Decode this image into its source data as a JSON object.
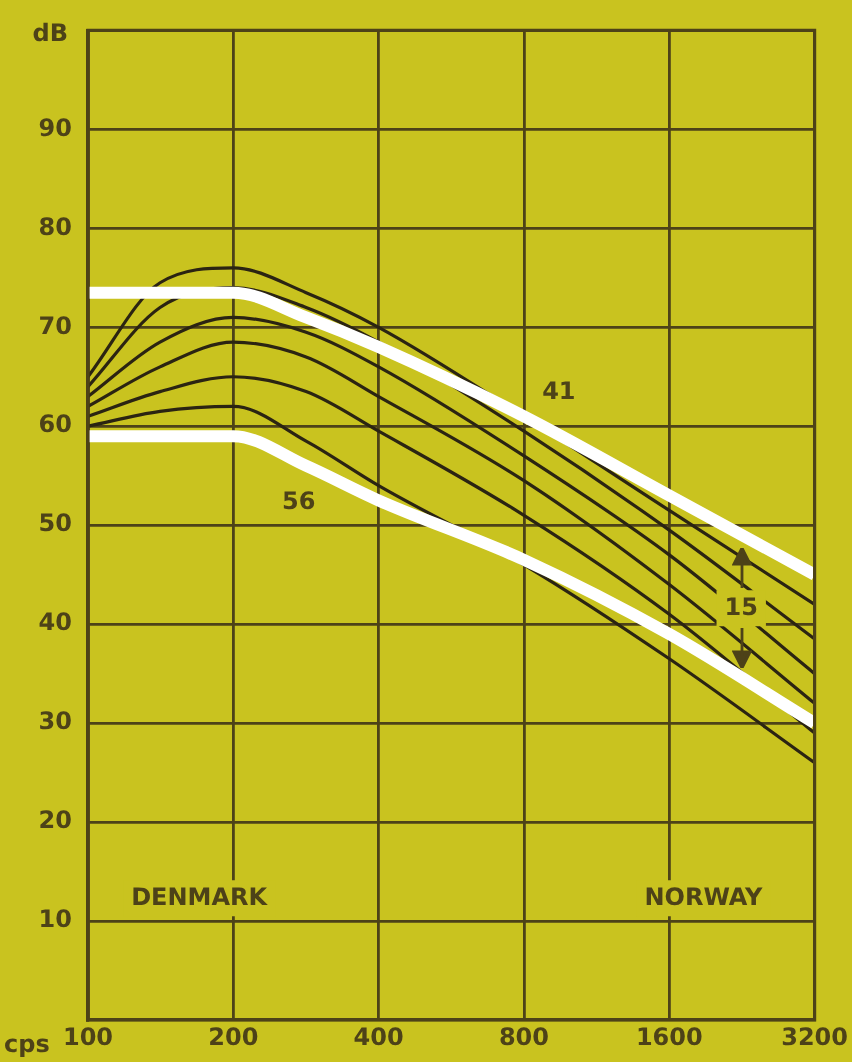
{
  "chart_data": {
    "type": "line",
    "xlabel": "cps",
    "ylabel": "dB",
    "x": [
      100,
      141,
      200,
      283,
      400,
      800,
      1600,
      3200
    ],
    "series": [
      {
        "color": "#ffffff",
        "values": [
          73.5,
          73.5,
          73.5,
          71,
          68,
          61,
          53,
          45
        ]
      },
      {
        "color": "#ffffff",
        "values": [
          59,
          59,
          59,
          56,
          52.5,
          46.5,
          39,
          30
        ]
      },
      {
        "color": "#2b2412",
        "values": [
          65,
          74.5,
          76,
          73.5,
          70,
          61,
          51.5,
          42
        ]
      },
      {
        "color": "#2b2412",
        "values": [
          64,
          72,
          74,
          72,
          68.5,
          59.5,
          49.5,
          38.5
        ]
      },
      {
        "color": "#2b2412",
        "values": [
          63,
          68.5,
          71,
          69.5,
          66,
          57,
          47,
          35
        ]
      },
      {
        "color": "#2b2412",
        "values": [
          62,
          66,
          68.5,
          67,
          63,
          54.5,
          44,
          32
        ]
      },
      {
        "color": "#2b2412",
        "values": [
          61,
          63.5,
          65,
          63.5,
          59.5,
          51,
          41,
          29
        ]
      },
      {
        "color": "#2b2412",
        "values": [
          60,
          61.5,
          62,
          58.5,
          54,
          46,
          36.5,
          26
        ]
      }
    ],
    "annotations": [
      "41",
      "56",
      "15",
      "DENMARK",
      "NORWAY"
    ],
    "log": "x",
    "xlim": [
      100,
      3200
    ],
    "ylim": [
      0,
      100
    ],
    "xticks": [
      100,
      200,
      400,
      800,
      1600,
      3200
    ],
    "yticks": [
      10,
      20,
      30,
      40,
      50,
      60,
      70,
      80,
      90
    ],
    "grid": true,
    "marker": "none"
  }
}
